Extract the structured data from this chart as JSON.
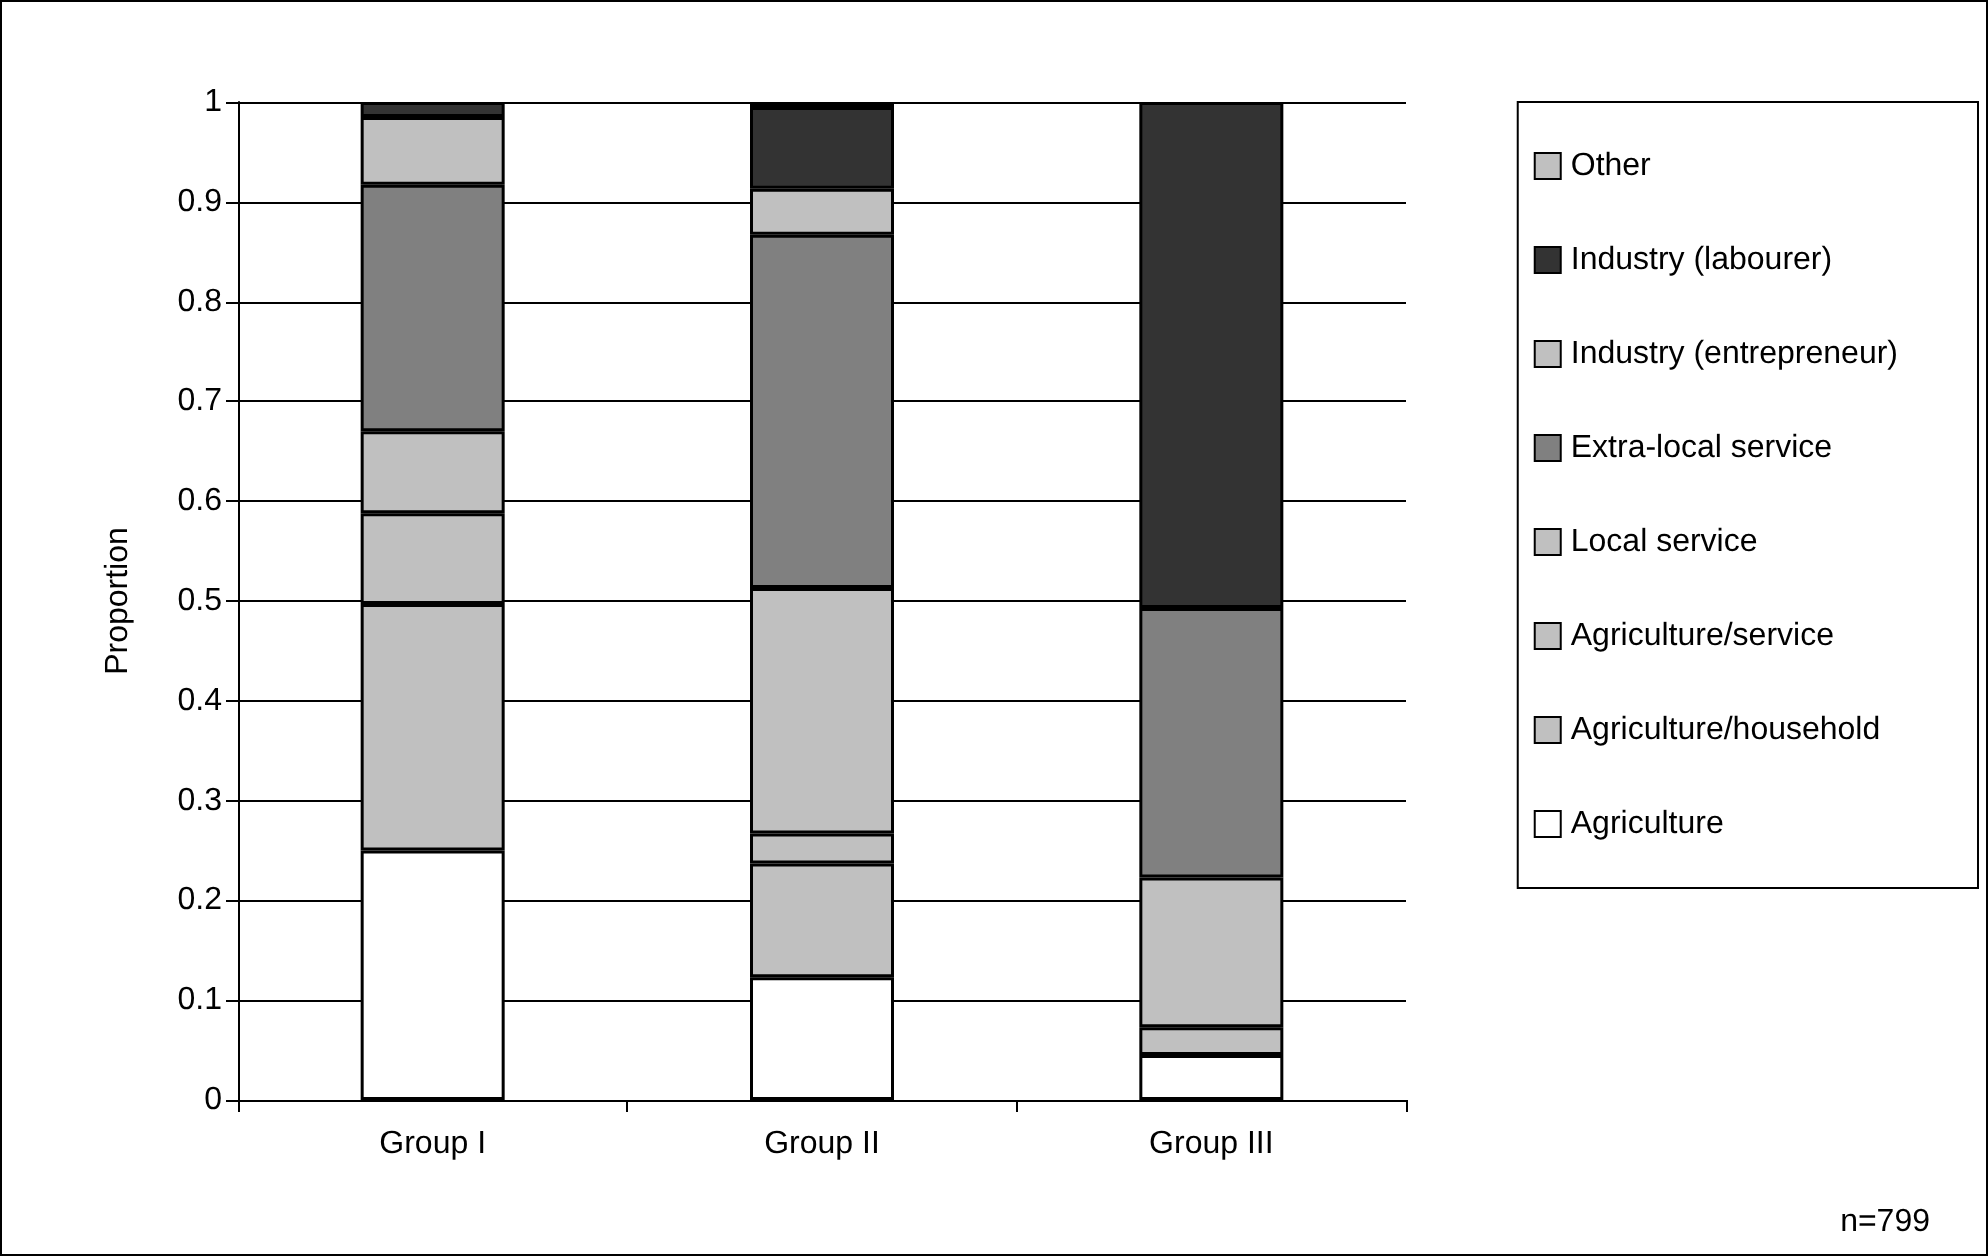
{
  "chart_data": {
    "type": "bar",
    "stacked": true,
    "ylabel": "Proportion",
    "categories": [
      "Group I",
      "Group II",
      "Group III"
    ],
    "series": [
      {
        "name": "Agriculture",
        "color": "#ffffff",
        "values": [
          0.25,
          0.123,
          0.045
        ]
      },
      {
        "name": "Agriculture/household",
        "color": "#c0c0c0",
        "values": [
          0.247,
          0.114,
          0.028
        ]
      },
      {
        "name": "Agriculture/service",
        "color": "#c0c0c0",
        "values": [
          0.091,
          0.03,
          0
        ]
      },
      {
        "name": "Local service",
        "color": "#c0c0c0",
        "values": [
          0.082,
          0.246,
          0.15
        ]
      },
      {
        "name": "Extra-local service",
        "color": "#808080",
        "values": [
          0.247,
          0.354,
          0.27
        ]
      },
      {
        "name": "Industry (entrepreneur)",
        "color": "#c0c0c0",
        "values": [
          0.068,
          0.046,
          0
        ]
      },
      {
        "name": "Industry (labourer)",
        "color": "#333333",
        "values": [
          0.015,
          0.082,
          0.507
        ]
      },
      {
        "name": "Other",
        "color": "#c0c0c0",
        "values": [
          0,
          0.005,
          0
        ]
      }
    ],
    "ylim": [
      0,
      1
    ],
    "yticks": [
      0,
      0.1,
      0.2,
      0.3,
      0.4,
      0.5,
      0.6,
      0.7,
      0.8,
      0.9,
      1
    ],
    "grid": "y",
    "legend": "right",
    "annotations": [
      "n=799"
    ]
  }
}
